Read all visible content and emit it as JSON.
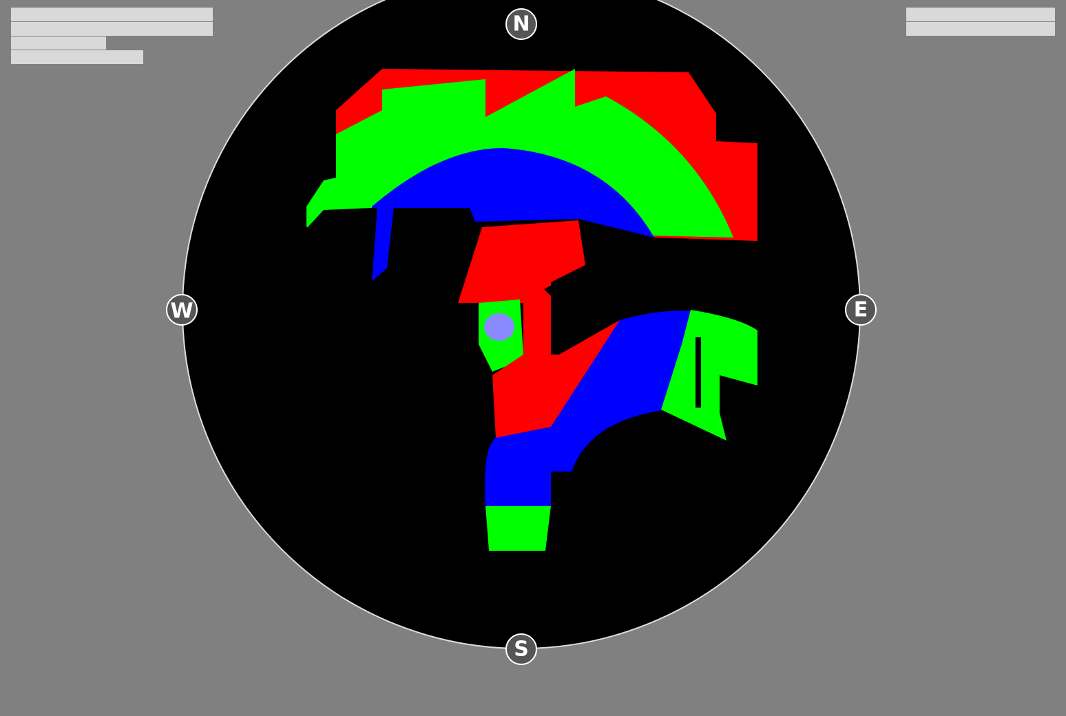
{
  "compass": {
    "north": "N",
    "west": "W",
    "east": "E",
    "south": "S"
  }
}
